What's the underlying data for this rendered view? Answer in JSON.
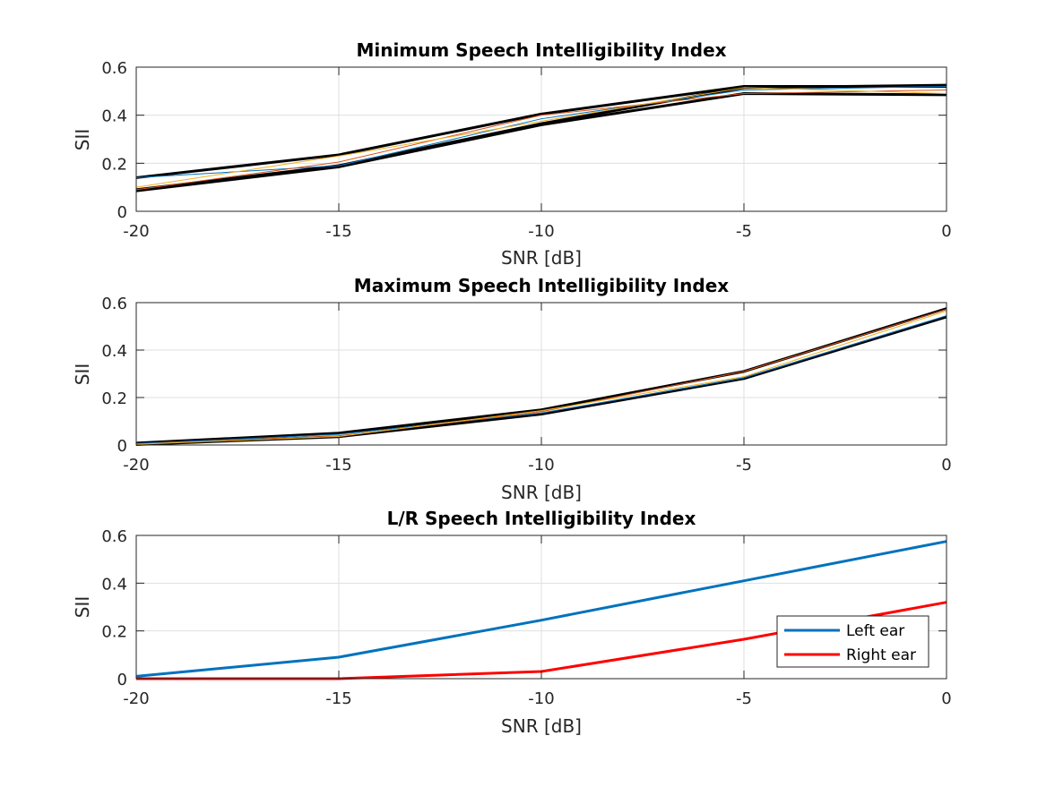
{
  "chart_data": [
    {
      "type": "line",
      "title": "Minimum Speech Intelligibility Index",
      "xlabel": "SNR [dB]",
      "ylabel": "SII",
      "xlim": [
        -20,
        0
      ],
      "ylim": [
        0,
        0.6
      ],
      "xticks": [
        -20,
        -15,
        -10,
        -5,
        0
      ],
      "xtick_labels": [
        "-20",
        "-15",
        "-10",
        "-5",
        "0"
      ],
      "yticks": [
        0,
        0.2,
        0.4,
        0.6
      ],
      "ytick_labels": [
        "0",
        "0.2",
        "0.4",
        "0.6"
      ],
      "grid": true,
      "x": [
        -20,
        -15,
        -10,
        -5,
        0
      ],
      "series": [
        {
          "name": "black-upper",
          "color": "#000000",
          "width": 3,
          "values": [
            0.14,
            0.235,
            0.405,
            0.52,
            0.52
          ]
        },
        {
          "name": "black-lower",
          "color": "#000000",
          "width": 3,
          "values": [
            0.085,
            0.185,
            0.36,
            0.49,
            0.485
          ]
        },
        {
          "name": "black-mid",
          "color": "#000000",
          "width": 3,
          "values": [
            0.09,
            0.19,
            0.365,
            0.515,
            0.525
          ]
        },
        {
          "name": "blue",
          "color": "#0072BD",
          "width": 1,
          "values": [
            0.14,
            0.19,
            0.385,
            0.505,
            0.52
          ]
        },
        {
          "name": "orange",
          "color": "#D95319",
          "width": 1,
          "values": [
            0.09,
            0.205,
            0.4,
            0.49,
            0.505
          ]
        },
        {
          "name": "yellow",
          "color": "#EDB120",
          "width": 1,
          "values": [
            0.1,
            0.23,
            0.375,
            0.515,
            0.49
          ]
        }
      ]
    },
    {
      "type": "line",
      "title": "Maximum Speech Intelligibility Index",
      "xlabel": "SNR [dB]",
      "ylabel": "SII",
      "xlim": [
        -20,
        0
      ],
      "ylim": [
        0,
        0.6
      ],
      "xticks": [
        -20,
        -15,
        -10,
        -5,
        0
      ],
      "xtick_labels": [
        "-20",
        "-15",
        "-10",
        "-5",
        "0"
      ],
      "yticks": [
        0,
        0.2,
        0.4,
        0.6
      ],
      "ytick_labels": [
        "0",
        "0.2",
        "0.4",
        "0.6"
      ],
      "grid": true,
      "x": [
        -20,
        -15,
        -10,
        -5,
        0
      ],
      "series": [
        {
          "name": "black-upper",
          "color": "#000000",
          "width": 3,
          "values": [
            0.008,
            0.05,
            0.148,
            0.31,
            0.575
          ]
        },
        {
          "name": "black-lower",
          "color": "#000000",
          "width": 3,
          "values": [
            0.002,
            0.035,
            0.13,
            0.28,
            0.54
          ]
        },
        {
          "name": "blue",
          "color": "#0072BD",
          "width": 1,
          "values": [
            0.006,
            0.045,
            0.135,
            0.283,
            0.545
          ]
        },
        {
          "name": "orange",
          "color": "#D95319",
          "width": 1,
          "values": [
            0.004,
            0.038,
            0.14,
            0.31,
            0.572
          ]
        },
        {
          "name": "yellow",
          "color": "#EDB120",
          "width": 1,
          "values": [
            0.003,
            0.036,
            0.145,
            0.288,
            0.565
          ]
        }
      ]
    },
    {
      "type": "line",
      "title": "L/R Speech Intelligibility Index",
      "xlabel": "SNR [dB]",
      "ylabel": "SII",
      "xlim": [
        -20,
        0
      ],
      "ylim": [
        0,
        0.6
      ],
      "xticks": [
        -20,
        -15,
        -10,
        -5,
        0
      ],
      "xtick_labels": [
        "-20",
        "-15",
        "-10",
        "-5",
        "0"
      ],
      "yticks": [
        0,
        0.2,
        0.4,
        0.6
      ],
      "ytick_labels": [
        "0",
        "0.2",
        "0.4",
        "0.6"
      ],
      "grid": true,
      "legend": "bottom-right",
      "x": [
        -20,
        -15,
        -10,
        -5,
        0
      ],
      "series": [
        {
          "name": "Left ear",
          "color": "#0072BD",
          "width": 3,
          "values": [
            0.01,
            0.09,
            0.245,
            0.41,
            0.575
          ]
        },
        {
          "name": "Right ear",
          "color": "#FF0000",
          "width": 3,
          "values": [
            0.0,
            0.0,
            0.03,
            0.165,
            0.32
          ]
        }
      ]
    }
  ]
}
